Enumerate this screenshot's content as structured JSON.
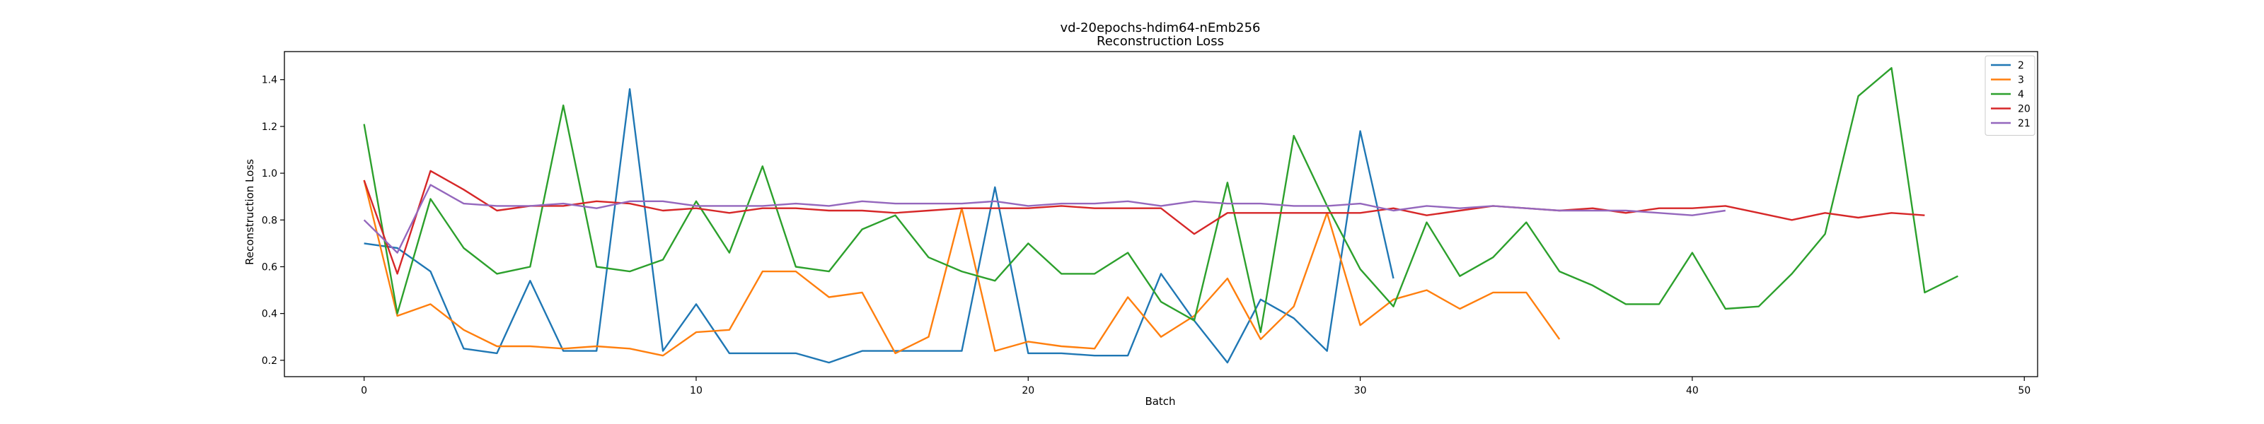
{
  "chart_data": {
    "type": "line",
    "title": [
      "vd-20epochs-hdim64-nEmb256",
      "Reconstruction Loss"
    ],
    "xlabel": "Batch",
    "ylabel": "Reconstruction Loss",
    "xlim": [
      -2.4,
      50.4
    ],
    "ylim": [
      0.13,
      1.52
    ],
    "xticks": [
      0,
      10,
      20,
      30,
      40,
      50
    ],
    "yticks": [
      0.2,
      0.4,
      0.6,
      0.8,
      1.0,
      1.2,
      1.4
    ],
    "ytick_labels": [
      "0.2",
      "0.4",
      "0.6",
      "0.8",
      "1.0",
      "1.2",
      "1.4"
    ],
    "grid": false,
    "legend_position": "upper right",
    "series": [
      {
        "name": "2",
        "color": "#1f77b4",
        "x": [
          0,
          1,
          2,
          3,
          4,
          5,
          6,
          7,
          8,
          9,
          10,
          11,
          12,
          13,
          14,
          15,
          16,
          17,
          18,
          19,
          20,
          21,
          22,
          23,
          24,
          25,
          26,
          27,
          28,
          29,
          30,
          31
        ],
        "y": [
          0.7,
          0.68,
          0.58,
          0.25,
          0.23,
          0.54,
          0.24,
          0.24,
          1.36,
          0.24,
          0.44,
          0.23,
          0.23,
          0.23,
          0.19,
          0.24,
          0.24,
          0.24,
          0.24,
          0.94,
          0.23,
          0.23,
          0.22,
          0.22,
          0.57,
          0.37,
          0.19,
          0.46,
          0.38,
          0.24,
          1.18,
          0.55
        ]
      },
      {
        "name": "3",
        "color": "#ff7f0e",
        "x": [
          0,
          1,
          2,
          3,
          4,
          5,
          6,
          7,
          8,
          9,
          10,
          11,
          12,
          13,
          14,
          15,
          16,
          17,
          18,
          19,
          20,
          21,
          22,
          23,
          24,
          25,
          26,
          27,
          28,
          29,
          30,
          31,
          32,
          33,
          34,
          35,
          36
        ],
        "y": [
          0.97,
          0.39,
          0.44,
          0.33,
          0.26,
          0.26,
          0.25,
          0.26,
          0.25,
          0.22,
          0.32,
          0.33,
          0.58,
          0.58,
          0.47,
          0.49,
          0.23,
          0.3,
          0.85,
          0.24,
          0.28,
          0.26,
          0.25,
          0.47,
          0.3,
          0.39,
          0.55,
          0.29,
          0.43,
          0.83,
          0.35,
          0.46,
          0.5,
          0.42,
          0.49,
          0.49,
          0.29
        ]
      },
      {
        "name": "4",
        "color": "#2ca02c",
        "x": [
          0,
          1,
          2,
          3,
          4,
          5,
          6,
          7,
          8,
          9,
          10,
          11,
          12,
          13,
          14,
          15,
          16,
          17,
          18,
          19,
          20,
          21,
          22,
          23,
          24,
          25,
          26,
          27,
          28,
          29,
          30,
          31,
          32,
          33,
          34,
          35,
          36,
          37,
          38,
          39,
          40,
          41,
          42,
          43,
          44,
          45,
          46,
          47,
          48
        ],
        "y": [
          1.21,
          0.4,
          0.89,
          0.68,
          0.57,
          0.6,
          1.29,
          0.6,
          0.58,
          0.63,
          0.88,
          0.66,
          1.03,
          0.6,
          0.58,
          0.76,
          0.82,
          0.64,
          0.58,
          0.54,
          0.7,
          0.57,
          0.57,
          0.66,
          0.45,
          0.37,
          0.96,
          0.32,
          1.16,
          0.86,
          0.59,
          0.43,
          0.79,
          0.56,
          0.64,
          0.79,
          0.58,
          0.52,
          0.44,
          0.44,
          0.66,
          0.42,
          0.43,
          0.57,
          0.74,
          1.33,
          1.45,
          0.49,
          0.56
        ]
      },
      {
        "name": "20",
        "color": "#d62728",
        "x": [
          0,
          1,
          2,
          3,
          4,
          5,
          6,
          7,
          8,
          9,
          10,
          11,
          12,
          13,
          14,
          15,
          16,
          17,
          18,
          19,
          20,
          21,
          22,
          23,
          24,
          25,
          26,
          27,
          28,
          29,
          30,
          31,
          32,
          33,
          34,
          35,
          36,
          37,
          38,
          39,
          40,
          41,
          42,
          43,
          44,
          45,
          46,
          47
        ],
        "y": [
          0.97,
          0.57,
          1.01,
          0.93,
          0.84,
          0.86,
          0.86,
          0.88,
          0.87,
          0.84,
          0.85,
          0.83,
          0.85,
          0.85,
          0.84,
          0.84,
          0.83,
          0.84,
          0.85,
          0.85,
          0.85,
          0.86,
          0.85,
          0.85,
          0.85,
          0.74,
          0.83,
          0.83,
          0.83,
          0.83,
          0.83,
          0.85,
          0.82,
          0.84,
          0.86,
          0.85,
          0.84,
          0.85,
          0.83,
          0.85,
          0.85,
          0.86,
          0.83,
          0.8,
          0.83,
          0.81,
          0.83,
          0.82
        ]
      },
      {
        "name": "21",
        "color": "#9467bd",
        "x": [
          0,
          1,
          2,
          3,
          4,
          5,
          6,
          7,
          8,
          9,
          10,
          11,
          12,
          13,
          14,
          15,
          16,
          17,
          18,
          19,
          20,
          21,
          22,
          23,
          24,
          25,
          26,
          27,
          28,
          29,
          30,
          31,
          32,
          33,
          34,
          35,
          36,
          37,
          38,
          39,
          40,
          41
        ],
        "y": [
          0.8,
          0.66,
          0.95,
          0.87,
          0.86,
          0.86,
          0.87,
          0.85,
          0.88,
          0.88,
          0.86,
          0.86,
          0.86,
          0.87,
          0.86,
          0.88,
          0.87,
          0.87,
          0.87,
          0.88,
          0.86,
          0.87,
          0.87,
          0.88,
          0.86,
          0.88,
          0.87,
          0.87,
          0.86,
          0.86,
          0.87,
          0.84,
          0.86,
          0.85,
          0.86,
          0.85,
          0.84,
          0.84,
          0.84,
          0.83,
          0.82,
          0.84
        ]
      }
    ]
  }
}
